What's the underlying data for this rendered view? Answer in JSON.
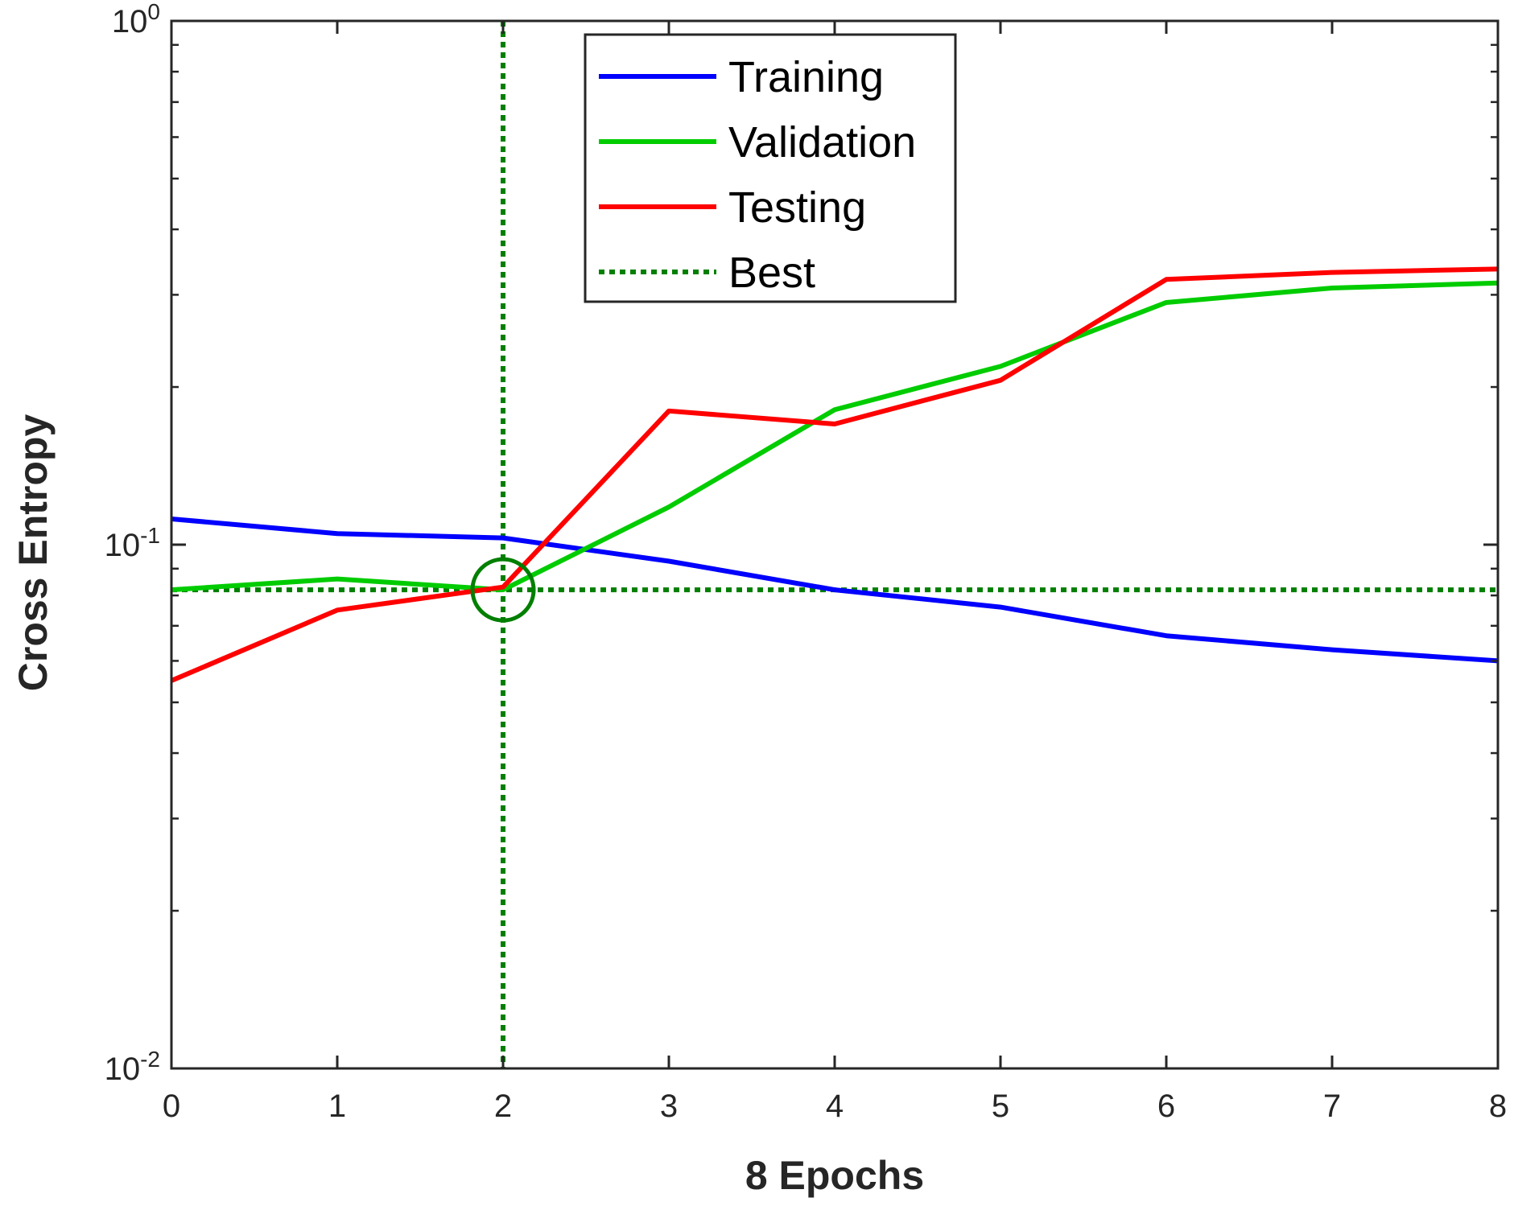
{
  "chart_data": {
    "type": "line",
    "title": "",
    "xlabel": "8 Epochs",
    "ylabel": "Cross Entropy",
    "xlim": [
      0,
      8
    ],
    "ylim": [
      0.01,
      1
    ],
    "yscale": "log",
    "x_ticks": [
      0,
      1,
      2,
      3,
      4,
      5,
      6,
      7,
      8
    ],
    "y_ticks": [
      {
        "value": 0.01,
        "base": "10",
        "exp": "-2"
      },
      {
        "value": 0.1,
        "base": "10",
        "exp": "-1"
      },
      {
        "value": 1,
        "base": "10",
        "exp": "0"
      }
    ],
    "x": [
      0,
      1,
      2,
      3,
      4,
      5,
      6,
      7,
      8
    ],
    "series": [
      {
        "name": "Training",
        "color": "#0000ff",
        "style": "solid",
        "values": [
          0.112,
          0.105,
          0.103,
          0.093,
          0.082,
          0.076,
          0.067,
          0.063,
          0.06
        ]
      },
      {
        "name": "Validation",
        "color": "#00cc00",
        "style": "solid",
        "values": [
          0.082,
          0.086,
          0.082,
          0.118,
          0.181,
          0.219,
          0.29,
          0.309,
          0.316
        ]
      },
      {
        "name": "Testing",
        "color": "#ff0000",
        "style": "solid",
        "values": [
          0.055,
          0.075,
          0.083,
          0.18,
          0.17,
          0.206,
          0.321,
          0.331,
          0.336
        ]
      }
    ],
    "best": {
      "name": "Best",
      "color": "#007f00",
      "style": "dotted",
      "epoch": 2,
      "value": 0.082
    },
    "legend_position": "top-center",
    "grid": false
  }
}
